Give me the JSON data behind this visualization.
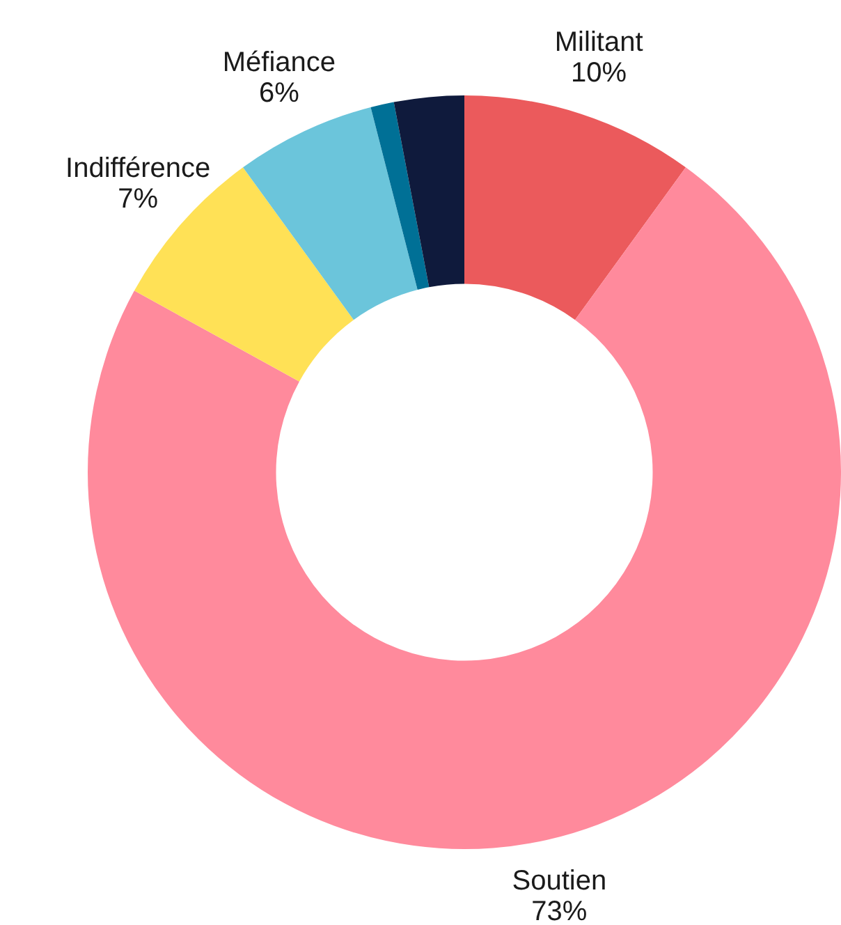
{
  "chart_data": {
    "type": "donut",
    "categories": [
      "Militant",
      "Soutien",
      "Indifférence",
      "Méfiance",
      null,
      null
    ],
    "values": [
      10,
      73,
      7,
      6,
      1,
      3
    ],
    "colors": [
      "#eb5a5c",
      "#ff8a9c",
      "#ffe156",
      "#6bc5db",
      "#007096",
      "#0f1a3c"
    ],
    "value_labels": [
      "10%",
      "73%",
      "7%",
      "6%",
      null,
      null
    ],
    "legend": false
  }
}
